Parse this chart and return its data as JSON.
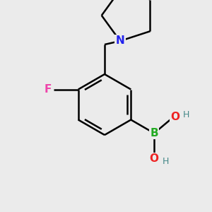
{
  "background_color": "#ebebeb",
  "atom_colors": {
    "F": "#ee44aa",
    "N": "#2222ee",
    "B": "#22aa22",
    "O": "#ee2222",
    "C": "#000000",
    "H": "#448888"
  },
  "bond_color": "#000000",
  "bond_width": 1.8,
  "figsize": [
    3.0,
    3.0
  ],
  "dpi": 100
}
